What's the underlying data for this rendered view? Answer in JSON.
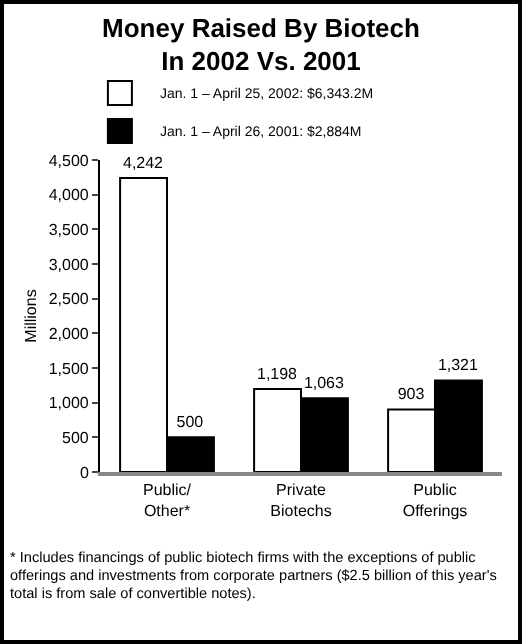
{
  "chart_data": {
    "type": "bar",
    "title": "Money Raised By Biotech\nIn 2002 Vs. 2001",
    "categories": [
      "Public/\nOther*",
      "Private\nBiotechs",
      "Public\nOfferings"
    ],
    "series": [
      {
        "name": "Jan. 1 – April 25, 2002: $6,343.2M",
        "color": "#ffffff",
        "values": [
          4242,
          1198,
          903
        ],
        "value_labels": [
          "4,242",
          "1,198",
          "903"
        ]
      },
      {
        "name": "Jan. 1 – April 26, 2001: $2,884M",
        "color": "#000000",
        "values": [
          500,
          1063,
          1321
        ],
        "value_labels": [
          "500",
          "1,063",
          "1,321"
        ]
      }
    ],
    "ylabel": "Millions",
    "ylim": [
      0,
      4500
    ],
    "yticks": [
      0,
      {
        "value": 500,
        "label": "500"
      },
      {
        "value": 1000,
        "label": "1,000"
      },
      {
        "value": 1500,
        "label": "1,500"
      },
      {
        "value": 2000,
        "label": "2,000"
      },
      {
        "value": 2500,
        "label": "2,500"
      },
      {
        "value": 3000,
        "label": "3,000"
      },
      {
        "value": 3500,
        "label": "3,500"
      },
      {
        "value": 4000,
        "label": "4,000"
      },
      {
        "value": 4500,
        "label": "4,500"
      }
    ],
    "legend": "top left",
    "grid": false,
    "annotations": [
      "* Includes financings of public biotech firms with the exceptions of public offerings and investments from corporate partners ($2.5 billion of this year's total is from sale of convertible notes)."
    ]
  }
}
